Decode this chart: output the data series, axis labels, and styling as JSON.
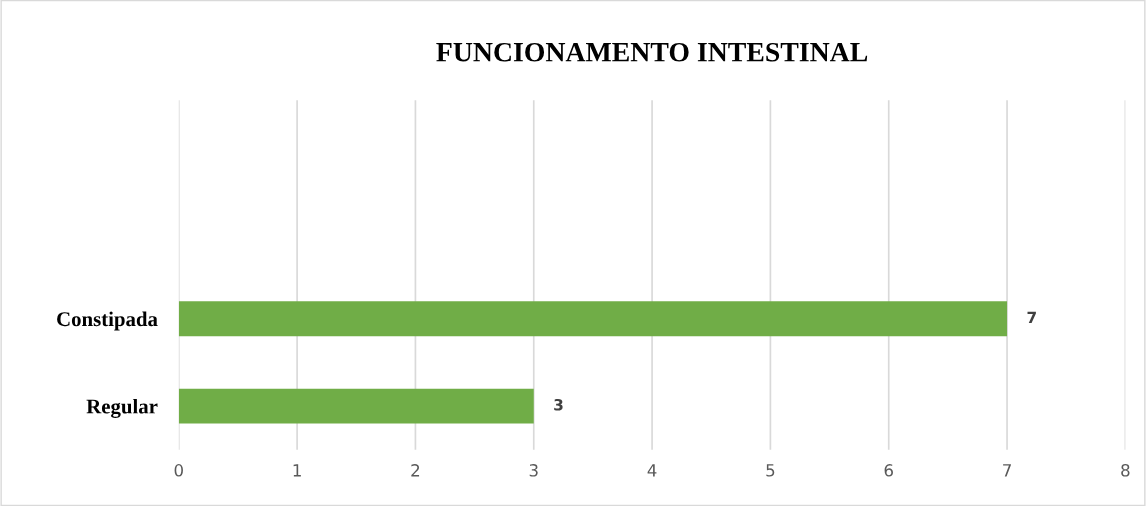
{
  "chart_data": {
    "type": "bar",
    "orientation": "horizontal",
    "title": "FUNCIONAMENTO INTESTINAL",
    "categories": [
      null,
      null,
      "Constipada",
      "Regular"
    ],
    "values": [
      null,
      null,
      7,
      3
    ],
    "color": "#70ad47",
    "xlim": [
      0,
      8
    ],
    "xticks": [
      0,
      1,
      2,
      3,
      4,
      5,
      6,
      7,
      8
    ],
    "grid": "x",
    "data_labels": true
  }
}
